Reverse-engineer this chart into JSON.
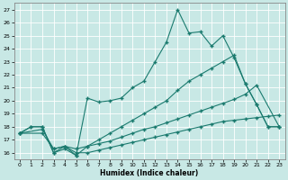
{
  "xlabel": "Humidex (Indice chaleur)",
  "xlim": [
    -0.5,
    23.5
  ],
  "ylim": [
    15.5,
    27.5
  ],
  "xticks": [
    0,
    1,
    2,
    3,
    4,
    5,
    6,
    7,
    8,
    9,
    10,
    11,
    12,
    13,
    14,
    15,
    16,
    17,
    18,
    19,
    20,
    21,
    22,
    23
  ],
  "yticks": [
    16,
    17,
    18,
    19,
    20,
    21,
    22,
    23,
    24,
    25,
    26,
    27
  ],
  "bg_color": "#c8e8e5",
  "grid_color": "#ffffff",
  "line_color": "#1a7a6e",
  "line1_x": [
    0,
    1,
    2,
    3,
    4,
    5,
    6,
    7,
    8,
    9,
    10,
    11,
    12,
    13,
    14,
    15,
    16,
    17,
    18,
    19,
    20,
    21,
    22,
    23
  ],
  "line1_y": [
    17.5,
    18.0,
    18.0,
    16.0,
    16.5,
    15.8,
    20.2,
    19.9,
    20.0,
    20.2,
    21.0,
    21.5,
    23.0,
    24.5,
    27.0,
    25.2,
    25.3,
    24.2,
    25.0,
    23.3,
    21.3,
    19.7,
    18.0,
    18.0
  ],
  "line2_x": [
    0,
    1,
    2,
    3,
    4,
    5,
    6,
    7,
    8,
    9,
    10,
    11,
    12,
    13,
    14,
    15,
    16,
    17,
    18,
    19,
    20,
    21,
    22,
    23
  ],
  "line2_y": [
    17.5,
    18.0,
    18.0,
    16.0,
    16.3,
    15.8,
    16.5,
    17.0,
    17.5,
    18.0,
    18.5,
    19.0,
    19.5,
    20.0,
    20.8,
    21.5,
    22.0,
    22.5,
    23.0,
    23.5,
    21.3,
    19.7,
    18.0,
    18.0
  ],
  "line3_x": [
    0,
    2,
    3,
    4,
    5,
    6,
    7,
    8,
    9,
    10,
    11,
    12,
    13,
    14,
    15,
    16,
    17,
    18,
    19,
    20,
    21,
    23
  ],
  "line3_y": [
    17.5,
    17.8,
    16.3,
    16.5,
    16.3,
    16.5,
    16.7,
    16.9,
    17.2,
    17.5,
    17.8,
    18.0,
    18.3,
    18.6,
    18.9,
    19.2,
    19.5,
    19.8,
    20.1,
    20.5,
    21.2,
    18.0
  ],
  "line4_x": [
    0,
    2,
    3,
    4,
    5,
    6,
    7,
    8,
    9,
    10,
    11,
    12,
    13,
    14,
    15,
    16,
    17,
    18,
    19,
    20,
    21,
    22,
    23
  ],
  "line4_y": [
    17.5,
    17.5,
    16.3,
    16.5,
    16.0,
    16.0,
    16.2,
    16.4,
    16.6,
    16.8,
    17.0,
    17.2,
    17.4,
    17.6,
    17.8,
    18.0,
    18.2,
    18.4,
    18.5,
    18.6,
    18.7,
    18.8,
    18.9
  ]
}
